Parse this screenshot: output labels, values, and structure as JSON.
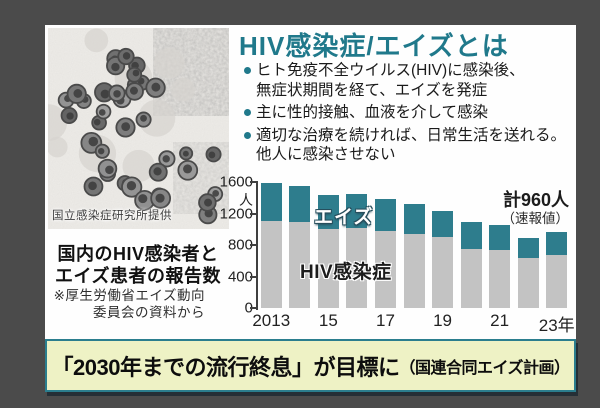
{
  "frame": {
    "background": "#4b4b4b",
    "card_background": "#fefefe"
  },
  "colors": {
    "accent_teal": "#20798b",
    "bar_teal": "#2e7d8d",
    "bar_gray": "#c3c3c3",
    "banner_bg": "#eef2c5",
    "text_dark": "#1a1a1a"
  },
  "micrograph": {
    "credit": "国立感染症研究所提供"
  },
  "left_panel": {
    "caption_lines": [
      "国内のHIV感染者と",
      "エイズ患者の報告数"
    ],
    "note_lines": [
      "※厚生労働省エイズ動向",
      "委員会の資料から"
    ]
  },
  "info": {
    "title": "HIV感染症/エイズとは",
    "bullets": [
      [
        "ヒト免疫不全ウイルス(HIV)に感染後、",
        "無症状期間を経て、エイズを発症"
      ],
      [
        "主に性的接触、血液を介して感染"
      ],
      [
        "適切な治療を続ければ、日常生活を送れる。",
        "他人に感染させない"
      ]
    ]
  },
  "chart_data": {
    "type": "bar",
    "stacked": true,
    "x": [
      2013,
      2014,
      2015,
      2016,
      2017,
      2018,
      2019,
      2020,
      2021,
      2022,
      2023
    ],
    "series": [
      {
        "name": "HIV感染症",
        "color": "#c3c3c3",
        "values": [
          1106,
          1091,
          1006,
          1011,
          976,
          940,
          903,
          750,
          742,
          632,
          669
        ]
      },
      {
        "name": "エイズ",
        "color": "#2e7d8d",
        "values": [
          484,
          455,
          428,
          437,
          413,
          377,
          333,
          345,
          315,
          252,
          291
        ]
      }
    ],
    "totals": [
      1590,
      1546,
      1434,
      1448,
      1389,
      1317,
      1236,
      1095,
      1057,
      884,
      960
    ],
    "title": "国内のHIV感染者とエイズ患者の報告数",
    "xlabel": "",
    "ylabel": "人",
    "ylim": [
      0,
      1600
    ],
    "yticks": [
      0,
      400,
      800,
      1200,
      1600
    ],
    "ytick_labels": [
      "0",
      "400",
      "800",
      "1200",
      "1600"
    ],
    "y_unit_label": "人",
    "xtick_indices": [
      0,
      2,
      4,
      6,
      8,
      10
    ],
    "xtick_labels": [
      "2013",
      "15",
      "17",
      "19",
      "21",
      "23年"
    ],
    "grid": false,
    "legend": "inline-labels",
    "annotations": {
      "aids_label": "エイズ",
      "hiv_label": "HIV感染症",
      "total_2023": "計960人",
      "total_2023_sub": "（速報値）"
    }
  },
  "banner": {
    "text_main": "「2030年までの流行終息」が目標に",
    "text_sub": "（国連合同エイズ計画）"
  }
}
